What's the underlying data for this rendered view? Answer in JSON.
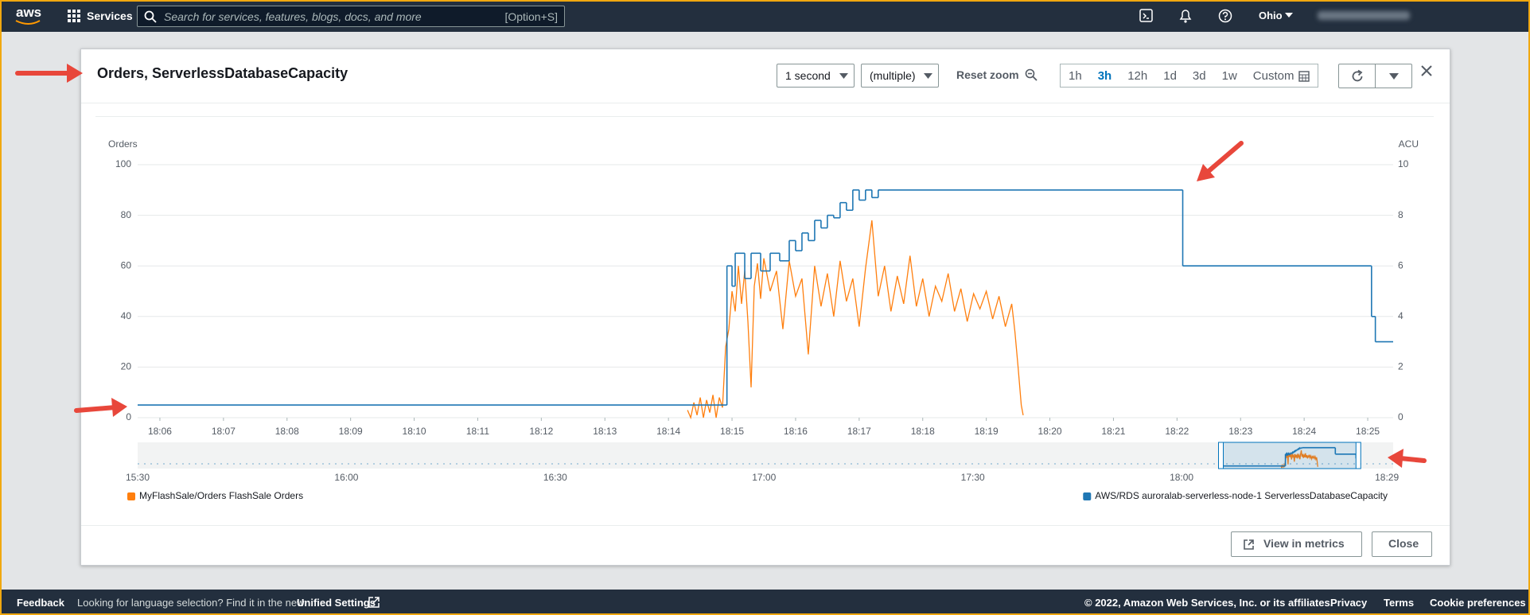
{
  "ui": {
    "topbar": {
      "logo": "aws",
      "services": "Services",
      "search_placeholder": "Search for services, features, blogs, docs, and more",
      "search_shortcut": "[Option+S]",
      "region": "Ohio"
    },
    "modal": {
      "title": "Orders, ServerlessDatabaseCapacity",
      "period": "1 second",
      "stat": "(multiple)",
      "reset_zoom": "Reset zoom",
      "ranges": [
        "1h",
        "3h",
        "12h",
        "1d",
        "3d",
        "1w",
        "Custom"
      ],
      "selected_range": "3h",
      "view_in_metrics": "View in metrics",
      "close": "Close"
    },
    "footer": {
      "feedback": "Feedback",
      "language_note": "Looking for language selection? Find it in the new",
      "unified_settings": "Unified Settings",
      "copyright": "© 2022, Amazon Web Services, Inc. or its affiliates.",
      "privacy": "Privacy",
      "terms": "Terms",
      "cookie": "Cookie preferences"
    }
  },
  "chart_data": {
    "type": "line",
    "y_label": "Orders",
    "y2_label": "ACU",
    "xlim": [
      1085.65,
      1105.4
    ],
    "xticks": [
      {
        "value": 1086,
        "label": "18:06"
      },
      {
        "value": 1087,
        "label": "18:07"
      },
      {
        "value": 1088,
        "label": "18:08"
      },
      {
        "value": 1089,
        "label": "18:09"
      },
      {
        "value": 1090,
        "label": "18:10"
      },
      {
        "value": 1091,
        "label": "18:11"
      },
      {
        "value": 1092,
        "label": "18:12"
      },
      {
        "value": 1093,
        "label": "18:13"
      },
      {
        "value": 1094,
        "label": "18:14"
      },
      {
        "value": 1095,
        "label": "18:15"
      },
      {
        "value": 1096,
        "label": "18:16"
      },
      {
        "value": 1097,
        "label": "18:17"
      },
      {
        "value": 1098,
        "label": "18:18"
      },
      {
        "value": 1099,
        "label": "18:19"
      },
      {
        "value": 1100,
        "label": "18:20"
      },
      {
        "value": 1101,
        "label": "18:21"
      },
      {
        "value": 1102,
        "label": "18:22"
      },
      {
        "value": 1103,
        "label": "18:23"
      },
      {
        "value": 1104,
        "label": "18:24"
      },
      {
        "value": 1105,
        "label": "18:25"
      }
    ],
    "ylim": [
      0,
      100
    ],
    "yticks": [
      0,
      20,
      40,
      60,
      80,
      100
    ],
    "y2lim": [
      0,
      10
    ],
    "y2ticks": [
      0,
      2,
      4,
      6,
      8,
      10
    ],
    "grid": true,
    "legend": "bottom",
    "series": [
      {
        "name": "MyFlashSale/Orders FlashSale Orders",
        "color": "#ff7f0e",
        "x": [
          1094.3,
          1094.35,
          1094.4,
          1094.45,
          1094.5,
          1094.55,
          1094.6,
          1094.65,
          1094.7,
          1094.75,
          1094.8,
          1094.85,
          1094.9,
          1094.95,
          1095.0,
          1095.05,
          1095.1,
          1095.15,
          1095.2,
          1095.25,
          1095.3,
          1095.35,
          1095.4,
          1095.45,
          1095.5,
          1095.6,
          1095.7,
          1095.8,
          1095.9,
          1096.0,
          1096.1,
          1096.2,
          1096.3,
          1096.4,
          1096.5,
          1096.6,
          1096.7,
          1096.8,
          1096.9,
          1097.0,
          1097.1,
          1097.2,
          1097.3,
          1097.4,
          1097.5,
          1097.6,
          1097.7,
          1097.8,
          1097.9,
          1098.0,
          1098.1,
          1098.2,
          1098.3,
          1098.4,
          1098.5,
          1098.6,
          1098.7,
          1098.8,
          1098.9,
          1099.0,
          1099.1,
          1099.2,
          1099.3,
          1099.4,
          1099.45,
          1099.5,
          1099.55,
          1099.58
        ],
        "values": [
          3,
          0,
          6,
          1,
          8,
          0,
          7,
          2,
          9,
          0,
          8,
          4,
          28,
          35,
          50,
          42,
          60,
          45,
          58,
          38,
          12,
          52,
          61,
          47,
          63,
          50,
          58,
          35,
          62,
          48,
          55,
          25,
          60,
          44,
          57,
          40,
          62,
          46,
          55,
          36,
          59,
          78,
          48,
          60,
          42,
          56,
          45,
          64,
          44,
          55,
          40,
          52,
          46,
          57,
          42,
          51,
          38,
          49,
          43,
          50,
          39,
          48,
          36,
          45,
          34,
          20,
          5,
          1
        ]
      },
      {
        "name": "AWS/RDS auroralab-serverless-node-1 ServerlessDatabaseCapacity",
        "color": "#1f77b4",
        "axis": "y2",
        "step": true,
        "x": [
          1085.65,
          1094.92,
          1095.0,
          1095.05,
          1095.2,
          1095.3,
          1095.45,
          1095.6,
          1095.75,
          1095.9,
          1096.0,
          1096.1,
          1096.2,
          1096.3,
          1096.4,
          1096.5,
          1096.6,
          1096.7,
          1096.8,
          1096.9,
          1097.0,
          1097.1,
          1097.2,
          1097.3,
          1102.09,
          1105.06,
          1105.12,
          1105.4
        ],
        "values": [
          0.5,
          6,
          5.2,
          6.5,
          5.5,
          6.5,
          5.8,
          6.5,
          6.2,
          7,
          6.6,
          7.3,
          7.0,
          7.8,
          7.5,
          8,
          7.9,
          8.5,
          8.2,
          9,
          8.6,
          9,
          8.7,
          9,
          6,
          4,
          3,
          3
        ]
      }
    ],
    "navigator": {
      "xlim": [
        930,
        1110.4
      ],
      "xticks": [
        {
          "value": 930,
          "label": "15:30"
        },
        {
          "value": 960,
          "label": "16:00"
        },
        {
          "value": 990,
          "label": "16:30"
        },
        {
          "value": 1020,
          "label": "17:00"
        },
        {
          "value": 1050,
          "label": "17:30"
        },
        {
          "value": 1080,
          "label": "18:00"
        },
        {
          "value": 1109.5,
          "label": "18:29"
        }
      ]
    }
  }
}
